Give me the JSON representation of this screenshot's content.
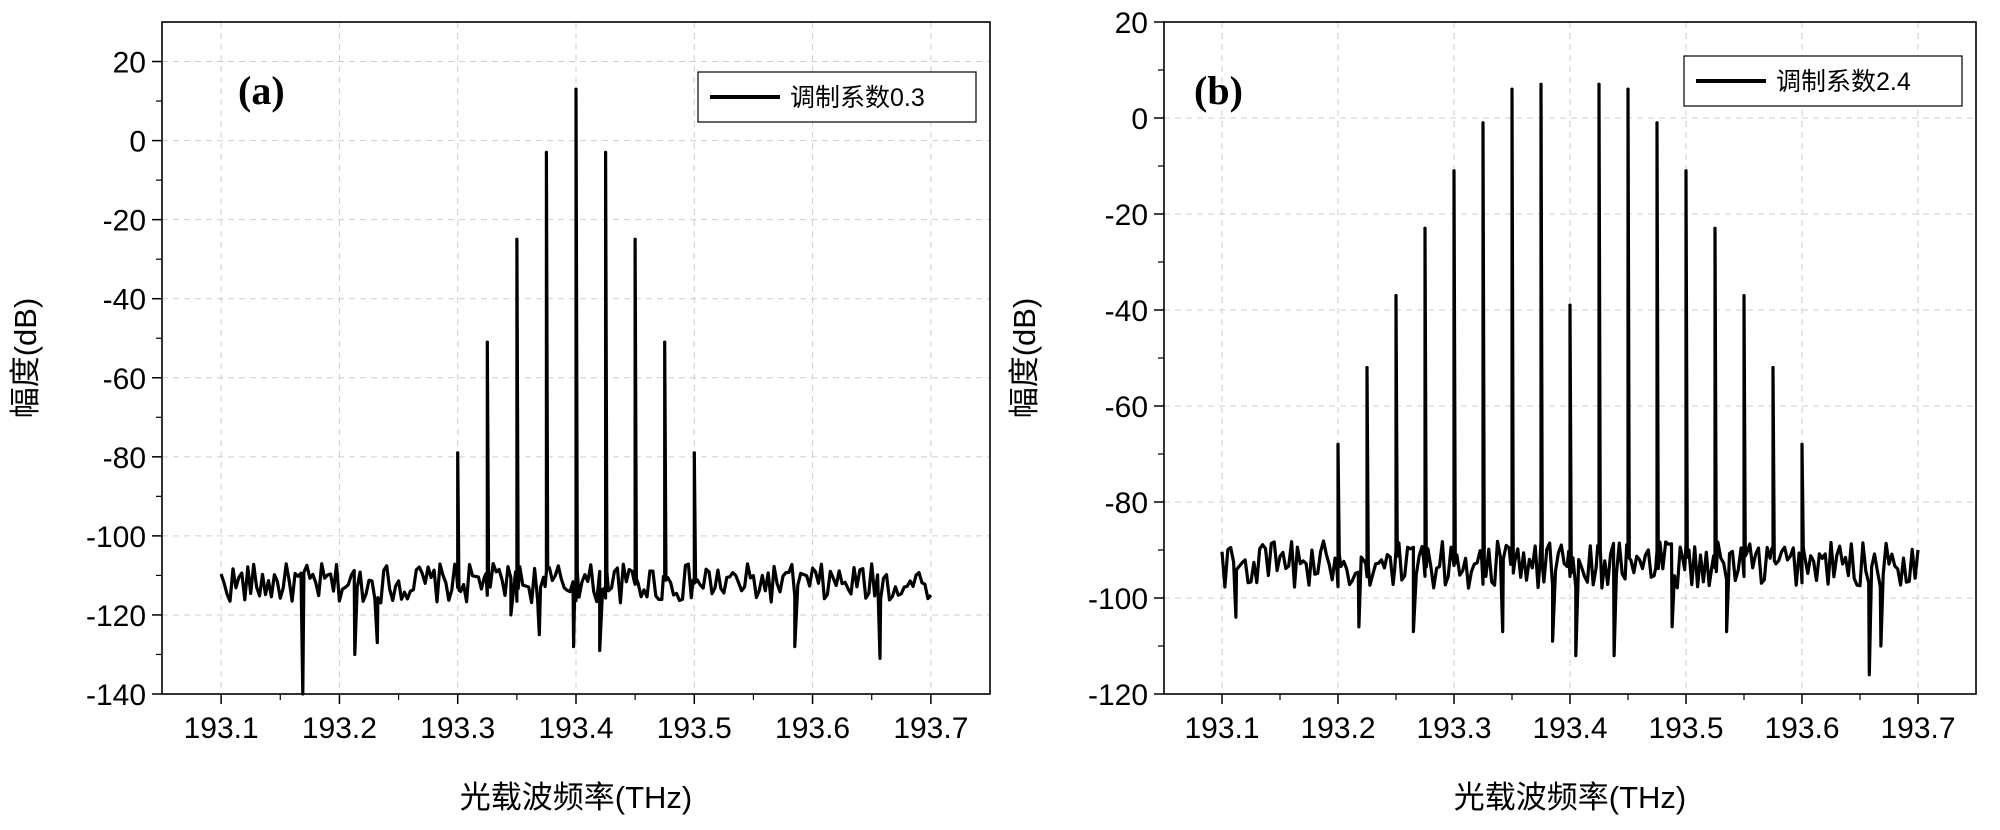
{
  "chart_data": [
    {
      "type": "line",
      "panel_label": "(a)",
      "xlabel": "光载波频率(THz)",
      "ylabel": "幅度(dB)",
      "xlim": [
        193.05,
        193.75
      ],
      "ylim": [
        -140,
        30
      ],
      "xticks": [
        193.1,
        193.2,
        193.3,
        193.4,
        193.5,
        193.6,
        193.7
      ],
      "xtick_labels": [
        "193.1",
        "193.2",
        "193.3",
        "193.4",
        "193.5",
        "193.6",
        "193.7"
      ],
      "yticks": [
        -140,
        -120,
        -100,
        -80,
        -60,
        -40,
        -20,
        0,
        20
      ],
      "ytick_labels": [
        "-140",
        "-120",
        "-100",
        "-80",
        "-60",
        "-40",
        "-20",
        "0",
        "20"
      ],
      "grid": true,
      "legend": {
        "placement": "top-right",
        "entries": [
          "调制系数0.3"
        ]
      },
      "series": [
        {
          "name": "调制系数0.3",
          "color": "#000000",
          "noise_floor": -112,
          "noise_x_range": [
            193.1,
            193.7
          ],
          "peaks": [
            {
              "x": 193.3,
              "y": -79
            },
            {
              "x": 193.325,
              "y": -51
            },
            {
              "x": 193.35,
              "y": -25
            },
            {
              "x": 193.375,
              "y": -3
            },
            {
              "x": 193.4,
              "y": 13
            },
            {
              "x": 193.425,
              "y": -3
            },
            {
              "x": 193.45,
              "y": -25
            },
            {
              "x": 193.475,
              "y": -51
            },
            {
              "x": 193.5,
              "y": -79
            }
          ],
          "dips": [
            {
              "x": 193.169,
              "y": -140
            },
            {
              "x": 193.213,
              "y": -130
            },
            {
              "x": 193.232,
              "y": -127
            },
            {
              "x": 193.345,
              "y": -120
            },
            {
              "x": 193.369,
              "y": -125
            },
            {
              "x": 193.398,
              "y": -128
            },
            {
              "x": 193.42,
              "y": -129
            },
            {
              "x": 193.585,
              "y": -128
            },
            {
              "x": 193.657,
              "y": -131
            }
          ]
        }
      ]
    },
    {
      "type": "line",
      "panel_label": "(b)",
      "xlabel": "光载波频率(THz)",
      "ylabel": "幅度(dB)",
      "xlim": [
        193.05,
        193.75
      ],
      "ylim": [
        -120,
        20
      ],
      "xticks": [
        193.1,
        193.2,
        193.3,
        193.4,
        193.5,
        193.6,
        193.7
      ],
      "xtick_labels": [
        "193.1",
        "193.2",
        "193.3",
        "193.4",
        "193.5",
        "193.6",
        "193.7"
      ],
      "yticks": [
        -120,
        -100,
        -80,
        -60,
        -40,
        -20,
        0,
        20
      ],
      "ytick_labels": [
        "-120",
        "-100",
        "-80",
        "-60",
        "-40",
        "-20",
        "0",
        "20"
      ],
      "grid": true,
      "legend": {
        "placement": "top-right",
        "entries": [
          "调制系数2.4"
        ]
      },
      "series": [
        {
          "name": "调制系数2.4",
          "color": "#000000",
          "noise_floor": -93,
          "noise_x_range": [
            193.1,
            193.7
          ],
          "peaks": [
            {
              "x": 193.2,
              "y": -68
            },
            {
              "x": 193.225,
              "y": -52
            },
            {
              "x": 193.25,
              "y": -37
            },
            {
              "x": 193.275,
              "y": -23
            },
            {
              "x": 193.3,
              "y": -11
            },
            {
              "x": 193.325,
              "y": -1
            },
            {
              "x": 193.35,
              "y": 6
            },
            {
              "x": 193.375,
              "y": 7
            },
            {
              "x": 193.4,
              "y": -39
            },
            {
              "x": 193.425,
              "y": 7
            },
            {
              "x": 193.45,
              "y": 6
            },
            {
              "x": 193.475,
              "y": -1
            },
            {
              "x": 193.5,
              "y": -11
            },
            {
              "x": 193.525,
              "y": -23
            },
            {
              "x": 193.55,
              "y": -37
            },
            {
              "x": 193.575,
              "y": -52
            },
            {
              "x": 193.6,
              "y": -68
            }
          ],
          "dips": [
            {
              "x": 193.112,
              "y": -104
            },
            {
              "x": 193.218,
              "y": -106
            },
            {
              "x": 193.265,
              "y": -107
            },
            {
              "x": 193.342,
              "y": -107
            },
            {
              "x": 193.385,
              "y": -109
            },
            {
              "x": 193.405,
              "y": -112
            },
            {
              "x": 193.438,
              "y": -112
            },
            {
              "x": 193.488,
              "y": -106
            },
            {
              "x": 193.535,
              "y": -107
            },
            {
              "x": 193.658,
              "y": -116
            },
            {
              "x": 193.668,
              "y": -110
            }
          ]
        }
      ]
    }
  ]
}
